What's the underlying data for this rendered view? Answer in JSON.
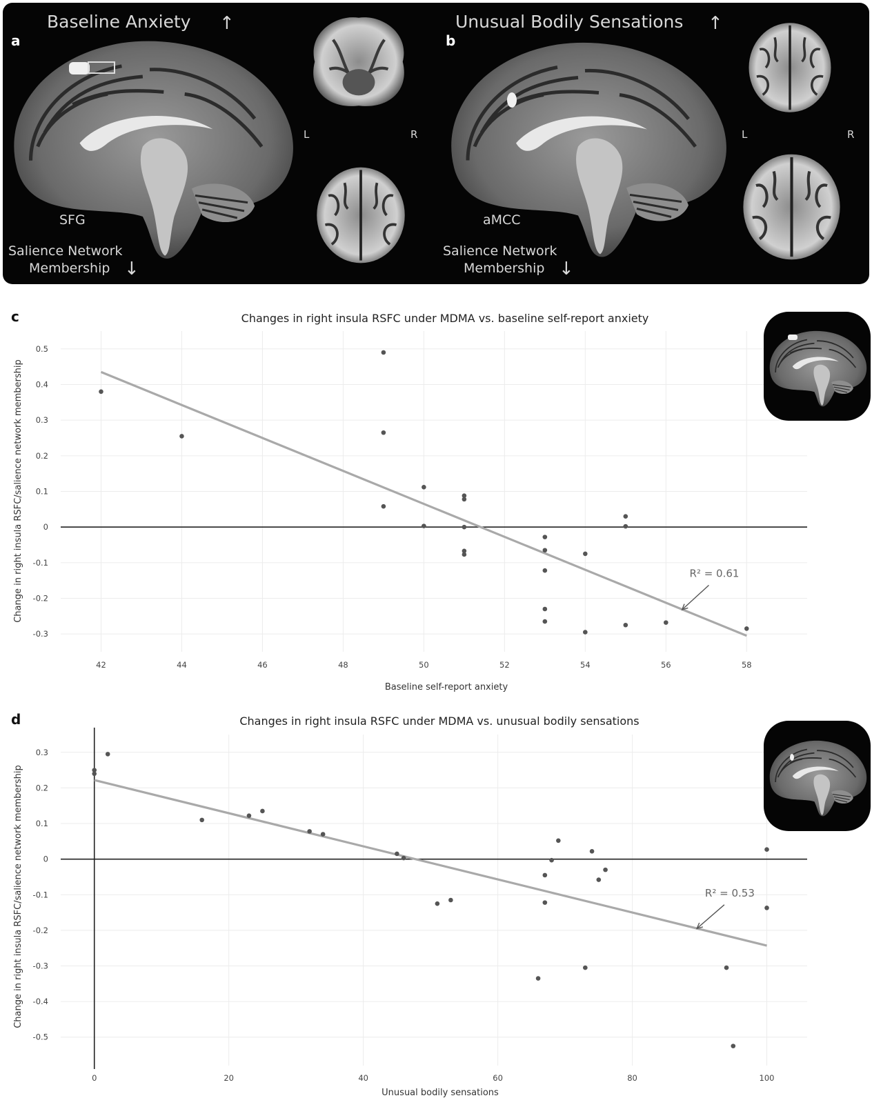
{
  "panel_a": {
    "letter": "a",
    "top_label": "Baseline Anxiety",
    "region_label": "SFG",
    "bottom_label_line1": "Salience Network",
    "bottom_label_line2": "Membership",
    "left_marker": "L",
    "right_marker": "R"
  },
  "panel_b": {
    "letter": "b",
    "top_label": "Unusual Bodily Sensations",
    "region_label": "aMCC",
    "bottom_label_line1": "Salience Network",
    "bottom_label_line2": "Membership",
    "left_marker": "L",
    "right_marker": "R"
  },
  "colors": {
    "brain_panel_bg": "#050505",
    "point": "#555555",
    "fit_line": "#a9a9a9",
    "grid": "#ececec",
    "zero_line": "#222222"
  },
  "chart_data": [
    {
      "panel": "c",
      "type": "scatter",
      "title": "Changes in right insula RSFC under MDMA vs. baseline self-report anxiety",
      "xlabel": "Baseline self-report anxiety",
      "ylabel": "Change in right insula RSFC/salience network membership",
      "xlim": [
        41,
        59.5
      ],
      "ylim": [
        -0.35,
        0.55
      ],
      "xticks": [
        42,
        44,
        46,
        48,
        50,
        52,
        54,
        56,
        58
      ],
      "yticks": [
        -0.3,
        -0.2,
        -0.1,
        0,
        0.1,
        0.2,
        0.3,
        0.4,
        0.5
      ],
      "ytick_labels": [
        "-0.3",
        "-0.2",
        "-0.1",
        "0",
        "0.1",
        "0.2",
        "0.3",
        "0.4",
        "0.5"
      ],
      "grid": true,
      "points": [
        [
          42,
          0.38
        ],
        [
          44,
          0.255
        ],
        [
          49,
          0.49
        ],
        [
          49,
          0.265
        ],
        [
          49,
          0.058
        ],
        [
          50,
          0.112
        ],
        [
          50,
          0.003
        ],
        [
          51,
          0.088
        ],
        [
          51,
          0.078
        ],
        [
          51,
          0.0
        ],
        [
          51,
          -0.067
        ],
        [
          51,
          -0.077
        ],
        [
          53,
          -0.028
        ],
        [
          53,
          -0.065
        ],
        [
          53,
          -0.122
        ],
        [
          53,
          -0.23
        ],
        [
          53,
          -0.265
        ],
        [
          54,
          -0.075
        ],
        [
          54,
          -0.295
        ],
        [
          55,
          0.03
        ],
        [
          55,
          0.002
        ],
        [
          55,
          -0.275
        ],
        [
          56,
          -0.268
        ],
        [
          58,
          -0.285
        ]
      ],
      "fit_line": [
        [
          42,
          0.435
        ],
        [
          58,
          -0.305
        ]
      ],
      "annotation": {
        "text": "R² = 0.61",
        "x": 57.2,
        "y": -0.14,
        "arrow_to": [
          56.4,
          -0.232
        ]
      },
      "inset": "brain-thumbnail"
    },
    {
      "panel": "d",
      "type": "scatter",
      "title": "Changes in right insula RSFC under MDMA vs. unusual bodily sensations",
      "xlabel": "Unusual bodily sensations",
      "ylabel": "Change in right insula RSFC/salience network membership",
      "xlim": [
        -5,
        106
      ],
      "ylim": [
        -0.58,
        0.35
      ],
      "xticks": [
        0,
        20,
        40,
        60,
        80,
        100
      ],
      "yticks": [
        -0.5,
        -0.4,
        -0.3,
        -0.2,
        -0.1,
        0,
        0.1,
        0.2,
        0.3
      ],
      "ytick_labels": [
        "-0.5",
        "-0.4",
        "-0.3",
        "-0.2",
        "-0.1",
        "0",
        "0.1",
        "0.2",
        "0.3"
      ],
      "grid": true,
      "points": [
        [
          0,
          0.25
        ],
        [
          0,
          0.24
        ],
        [
          2,
          0.295
        ],
        [
          16,
          0.11
        ],
        [
          23,
          0.122
        ],
        [
          25,
          0.135
        ],
        [
          32,
          0.078
        ],
        [
          34,
          0.07
        ],
        [
          45,
          0.015
        ],
        [
          46,
          0.003
        ],
        [
          51,
          -0.125
        ],
        [
          53,
          -0.115
        ],
        [
          66,
          -0.335
        ],
        [
          67,
          -0.045
        ],
        [
          67,
          -0.122
        ],
        [
          68,
          -0.003
        ],
        [
          69,
          0.052
        ],
        [
          73,
          -0.305
        ],
        [
          74,
          0.022
        ],
        [
          75,
          -0.058
        ],
        [
          76,
          -0.03
        ],
        [
          94,
          -0.305
        ],
        [
          95,
          -0.525
        ],
        [
          100,
          0.027
        ],
        [
          100,
          -0.137
        ]
      ],
      "fit_line": [
        [
          0,
          0.222
        ],
        [
          100,
          -0.243
        ]
      ],
      "annotation": {
        "text": "R² = 0.53",
        "x": 94.5,
        "y": -0.105,
        "arrow_to": [
          89.6,
          -0.195
        ]
      },
      "inset": "brain-thumbnail"
    }
  ]
}
